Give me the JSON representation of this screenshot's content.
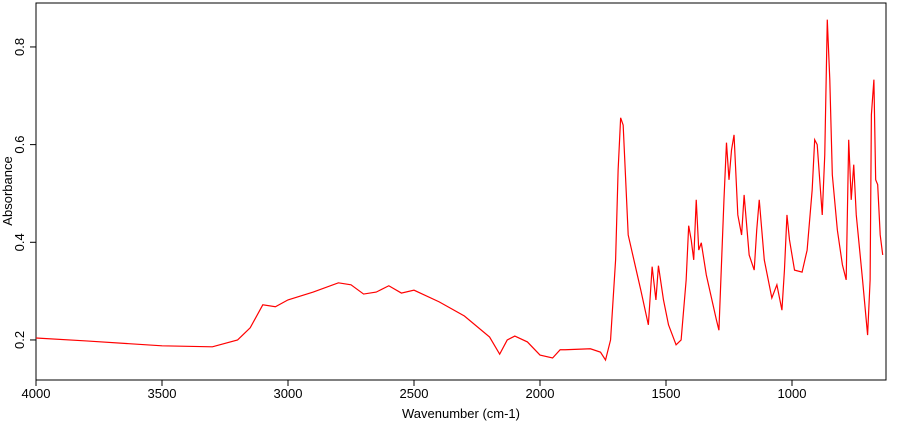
{
  "chart_data": {
    "type": "line",
    "xlabel": "Wavenumber (cm-1)",
    "ylabel": "Absorbance",
    "xlim": [
      4000,
      627
    ],
    "ylim": [
      0.118,
      0.89
    ],
    "xticks": [
      4000,
      3500,
      3000,
      2500,
      2000,
      1500,
      1000
    ],
    "yticks": [
      0.2,
      0.4,
      0.6,
      0.8
    ],
    "series": [
      {
        "color": "#ff0000",
        "x": [
          4000,
          3800,
          3500,
          3300,
          3200,
          3150,
          3100,
          3050,
          3000,
          2900,
          2800,
          2750,
          2700,
          2650,
          2600,
          2550,
          2500,
          2400,
          2300,
          2200,
          2160,
          2130,
          2100,
          2050,
          2000,
          1950,
          1920,
          1900,
          1800,
          1760,
          1740,
          1720,
          1700,
          1690,
          1680,
          1670,
          1650,
          1600,
          1570,
          1555,
          1540,
          1530,
          1510,
          1490,
          1460,
          1440,
          1420,
          1410,
          1400,
          1390,
          1380,
          1370,
          1360,
          1340,
          1300,
          1290,
          1270,
          1260,
          1250,
          1240,
          1230,
          1215,
          1200,
          1190,
          1170,
          1150,
          1140,
          1130,
          1110,
          1080,
          1060,
          1040,
          1030,
          1020,
          1010,
          990,
          960,
          940,
          920,
          910,
          900,
          890,
          880,
          870,
          860,
          850,
          840,
          820,
          800,
          785,
          775,
          765,
          755,
          745,
          720,
          700,
          690,
          685,
          675,
          668,
          660,
          650,
          640
        ],
        "values": [
          0.204,
          0.198,
          0.188,
          0.186,
          0.2,
          0.225,
          0.272,
          0.268,
          0.282,
          0.298,
          0.317,
          0.313,
          0.294,
          0.298,
          0.311,
          0.296,
          0.302,
          0.278,
          0.249,
          0.206,
          0.171,
          0.2,
          0.208,
          0.196,
          0.169,
          0.163,
          0.18,
          0.18,
          0.182,
          0.175,
          0.159,
          0.2,
          0.364,
          0.548,
          0.655,
          0.64,
          0.415,
          0.302,
          0.231,
          0.35,
          0.282,
          0.352,
          0.282,
          0.231,
          0.19,
          0.2,
          0.323,
          0.434,
          0.405,
          0.364,
          0.487,
          0.384,
          0.399,
          0.333,
          0.241,
          0.22,
          0.487,
          0.604,
          0.528,
          0.589,
          0.62,
          0.456,
          0.415,
          0.497,
          0.374,
          0.343,
          0.425,
          0.487,
          0.364,
          0.286,
          0.313,
          0.261,
          0.343,
          0.456,
          0.405,
          0.343,
          0.339,
          0.384,
          0.507,
          0.61,
          0.6,
          0.528,
          0.456,
          0.579,
          0.856,
          0.733,
          0.538,
          0.425,
          0.354,
          0.323,
          0.61,
          0.487,
          0.559,
          0.456,
          0.323,
          0.21,
          0.323,
          0.661,
          0.733,
          0.528,
          0.518,
          0.415,
          0.374
        ]
      }
    ]
  }
}
